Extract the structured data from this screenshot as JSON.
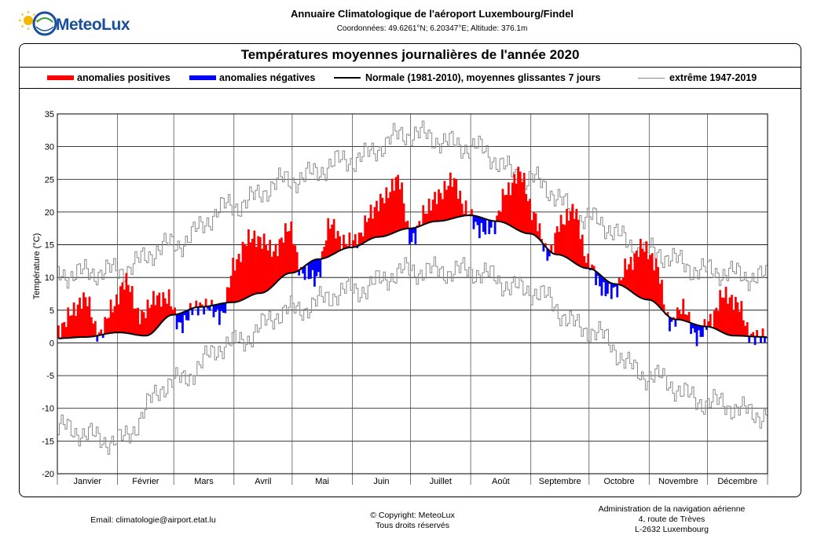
{
  "header": {
    "brand": "MeteoLux",
    "title": "Annuaire Climatologique de l'aéroport Luxembourg/Findel",
    "coordinates": "Coordonnées: 49.6261°N; 6.20347°E; Altitude: 376.1m"
  },
  "legend": {
    "positive": "anomalies positives",
    "negative": "anomalies négatives",
    "normal": "Normale (1981-2010), moyennes glissantes 7 jours",
    "extreme": "extrême 1947-2019"
  },
  "colors": {
    "positive": "#ff0000",
    "negative": "#0000ff",
    "normal": "#000000",
    "extreme": "#8a8a8a"
  },
  "footer": {
    "email": "Email: climatologie@airport.etat.lu",
    "copyright": "© Copyright: MeteoLux",
    "rights": "Tous droits réservés",
    "address1": "Administration de la navigation aérienne",
    "address2": "4, route de Trèves",
    "address3": "L-2632 Luxembourg"
  },
  "chart_data": {
    "type": "bar",
    "title": "Températures moyennes journalières de l'année 2020",
    "ylabel": "Température (°C)",
    "xlabel": "",
    "ylim": [
      -20,
      35
    ],
    "yticks": [
      -20,
      -15,
      -10,
      -5,
      0,
      5,
      10,
      15,
      20,
      25,
      30,
      35
    ],
    "grid": true,
    "legend_position": "top",
    "months": [
      "Janvier",
      "Février",
      "Mars",
      "Avril",
      "Mai",
      "Juin",
      "Juillet",
      "Août",
      "Septembre",
      "Octobre",
      "Novembre",
      "Décembre"
    ],
    "normal_anchor_days": [
      1,
      15,
      32,
      46,
      60,
      74,
      91,
      105,
      121,
      135,
      152,
      166,
      182,
      196,
      213,
      227,
      244,
      258,
      274,
      288,
      305,
      319,
      335,
      349,
      366
    ],
    "normal_anchor_values": [
      0.7,
      0.9,
      1.6,
      1.1,
      4.3,
      5.5,
      6.2,
      7.6,
      10.7,
      12.8,
      14.6,
      16.2,
      17.5,
      18.6,
      19.5,
      18.6,
      16.7,
      13.5,
      11.4,
      9.0,
      6.6,
      3.6,
      2.5,
      1.1,
      0.9
    ],
    "anomaly_anchor_days": [
      1,
      8,
      15,
      22,
      29,
      36,
      43,
      50,
      57,
      64,
      71,
      78,
      85,
      92,
      99,
      106,
      113,
      120,
      127,
      134,
      141,
      148,
      155,
      162,
      169,
      176,
      183,
      190,
      197,
      204,
      211,
      218,
      225,
      232,
      239,
      246,
      253,
      260,
      267,
      274,
      281,
      288,
      295,
      302,
      309,
      316,
      323,
      330,
      337,
      344,
      351,
      358,
      366
    ],
    "anomaly_anchor_values": [
      1,
      4,
      6,
      0,
      4,
      8,
      3,
      5,
      3,
      -2,
      0,
      0,
      -2,
      6,
      9,
      8,
      5,
      7,
      -1,
      -3,
      5,
      1,
      1,
      4,
      6,
      8,
      -2,
      2,
      4,
      6,
      1,
      -2,
      -1,
      5,
      9,
      3,
      -1,
      5,
      8,
      1,
      -2,
      -1,
      4,
      8,
      6,
      -1,
      2,
      -2,
      1,
      6,
      5,
      0,
      0
    ],
    "extreme_max_anchor_days": [
      1,
      31,
      60,
      91,
      121,
      152,
      182,
      213,
      244,
      274,
      305,
      335,
      366
    ],
    "extreme_max_anchor_values": [
      10.5,
      11,
      15,
      21,
      25,
      28,
      32,
      30,
      25,
      19,
      14,
      11,
      10
    ],
    "extreme_min_anchor_days": [
      1,
      31,
      60,
      91,
      121,
      152,
      182,
      213,
      244,
      274,
      305,
      335,
      366
    ],
    "extreme_min_anchor_values": [
      -13,
      -15,
      -6,
      0,
      5,
      8,
      11,
      11,
      8,
      2,
      -5,
      -9,
      -11
    ]
  }
}
